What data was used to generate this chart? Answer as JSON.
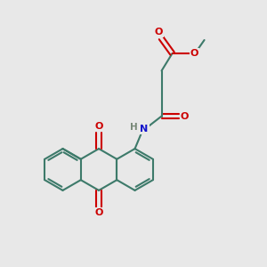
{
  "bg_color": "#e8e8e8",
  "bond_color": "#3d7a6a",
  "lw": 1.5,
  "o_color": "#cc0000",
  "n_color": "#1414cc",
  "h_color": "#778877",
  "fs": 8.0,
  "dpi": 100,
  "figsize": [
    3.0,
    3.0
  ],
  "xlim": [
    0,
    10
  ],
  "ylim": [
    0,
    10
  ]
}
